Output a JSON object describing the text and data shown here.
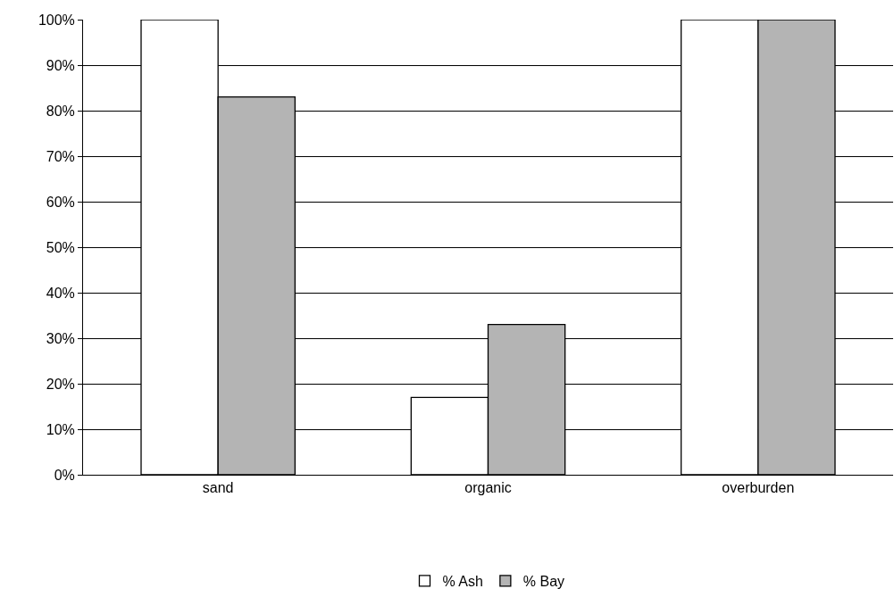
{
  "chart_data": {
    "type": "bar",
    "categories": [
      "sand",
      "organic",
      "overburden"
    ],
    "series": [
      {
        "name": "% Ash",
        "color": "#ffffff",
        "values": [
          100,
          17,
          100
        ]
      },
      {
        "name": "% Bay",
        "color": "#b4b4b4",
        "values": [
          83,
          33,
          100
        ]
      }
    ],
    "ylim": [
      0,
      100
    ],
    "yticks": [
      {
        "value": 0,
        "label": "0%"
      },
      {
        "value": 10,
        "label": "10%"
      },
      {
        "value": 20,
        "label": "20%"
      },
      {
        "value": 30,
        "label": "30%"
      },
      {
        "value": 40,
        "label": "40%"
      },
      {
        "value": 50,
        "label": "50%"
      },
      {
        "value": 60,
        "label": "60%"
      },
      {
        "value": 70,
        "label": "70%"
      },
      {
        "value": 80,
        "label": "80%"
      },
      {
        "value": 90,
        "label": "90%"
      },
      {
        "value": 100,
        "label": "100%"
      }
    ],
    "grid": "y",
    "legend": "bottom"
  }
}
